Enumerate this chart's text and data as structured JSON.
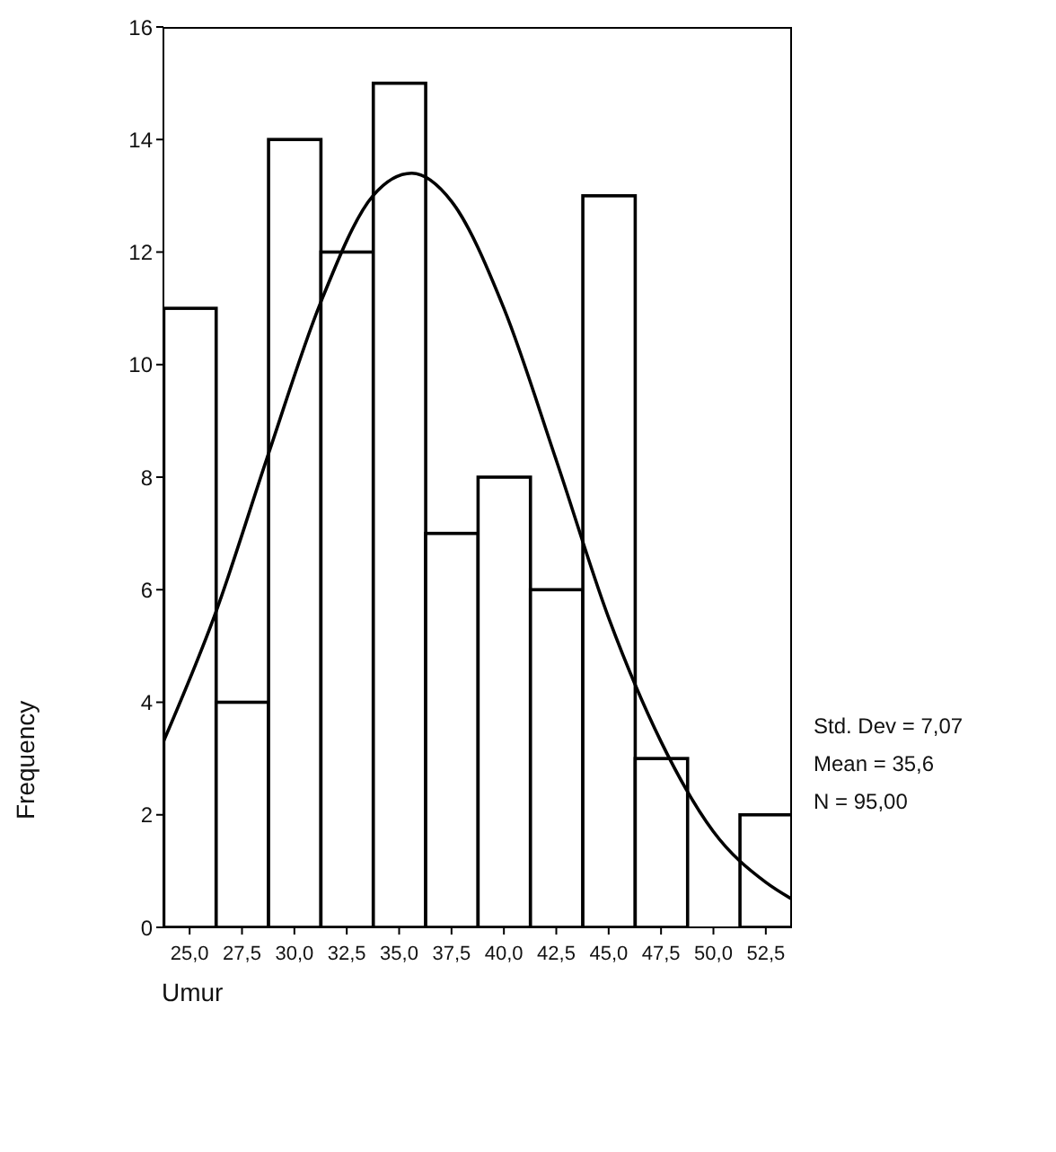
{
  "chart_data": {
    "type": "histogram",
    "xlabel": "Umur",
    "ylabel": "Frequency",
    "bins": [
      23.75,
      26.25,
      28.75,
      31.25,
      33.75,
      36.25,
      38.75,
      41.25,
      43.75,
      46.25,
      48.75,
      51.25,
      53.75
    ],
    "values": [
      11,
      4,
      14,
      12,
      15,
      7,
      8,
      6,
      13,
      3,
      0,
      2
    ],
    "color": "#ffffff",
    "series": [
      {
        "type": "line",
        "color": "#000000",
        "marker": "none",
        "x": [
          23.75,
          26.25,
          28.75,
          31.25,
          33.75,
          35.6,
          37.5,
          40,
          42.5,
          45,
          47.5,
          50,
          52.5,
          53.75
        ],
        "values": [
          3.3,
          5.6,
          8.4,
          11.1,
          13.0,
          13.4,
          12.9,
          11.0,
          8.3,
          5.5,
          3.3,
          1.7,
          0.8,
          0.5
        ]
      }
    ],
    "xlim": [
      23.75,
      53.75
    ],
    "xticks": [
      {
        "value": 25,
        "label": "25,0"
      },
      {
        "value": 27.5,
        "label": "27,5"
      },
      {
        "value": 30,
        "label": "30,0"
      },
      {
        "value": 32.5,
        "label": "32,5"
      },
      {
        "value": 35,
        "label": "35,0"
      },
      {
        "value": 37.5,
        "label": "37,5"
      },
      {
        "value": 40,
        "label": "40,0"
      },
      {
        "value": 42.5,
        "label": "42,5"
      },
      {
        "value": 45,
        "label": "45,0"
      },
      {
        "value": 47.5,
        "label": "47,5"
      },
      {
        "value": 50,
        "label": "50,0"
      },
      {
        "value": 52.5,
        "label": "52,5"
      }
    ],
    "ylim": [
      0,
      16
    ],
    "yticks": [
      0,
      2,
      4,
      6,
      8,
      10,
      12,
      14,
      16
    ],
    "grid": false,
    "annotations": [
      "Std. Dev = 7,07",
      "Mean = 35,6",
      "N = 95,00"
    ]
  }
}
